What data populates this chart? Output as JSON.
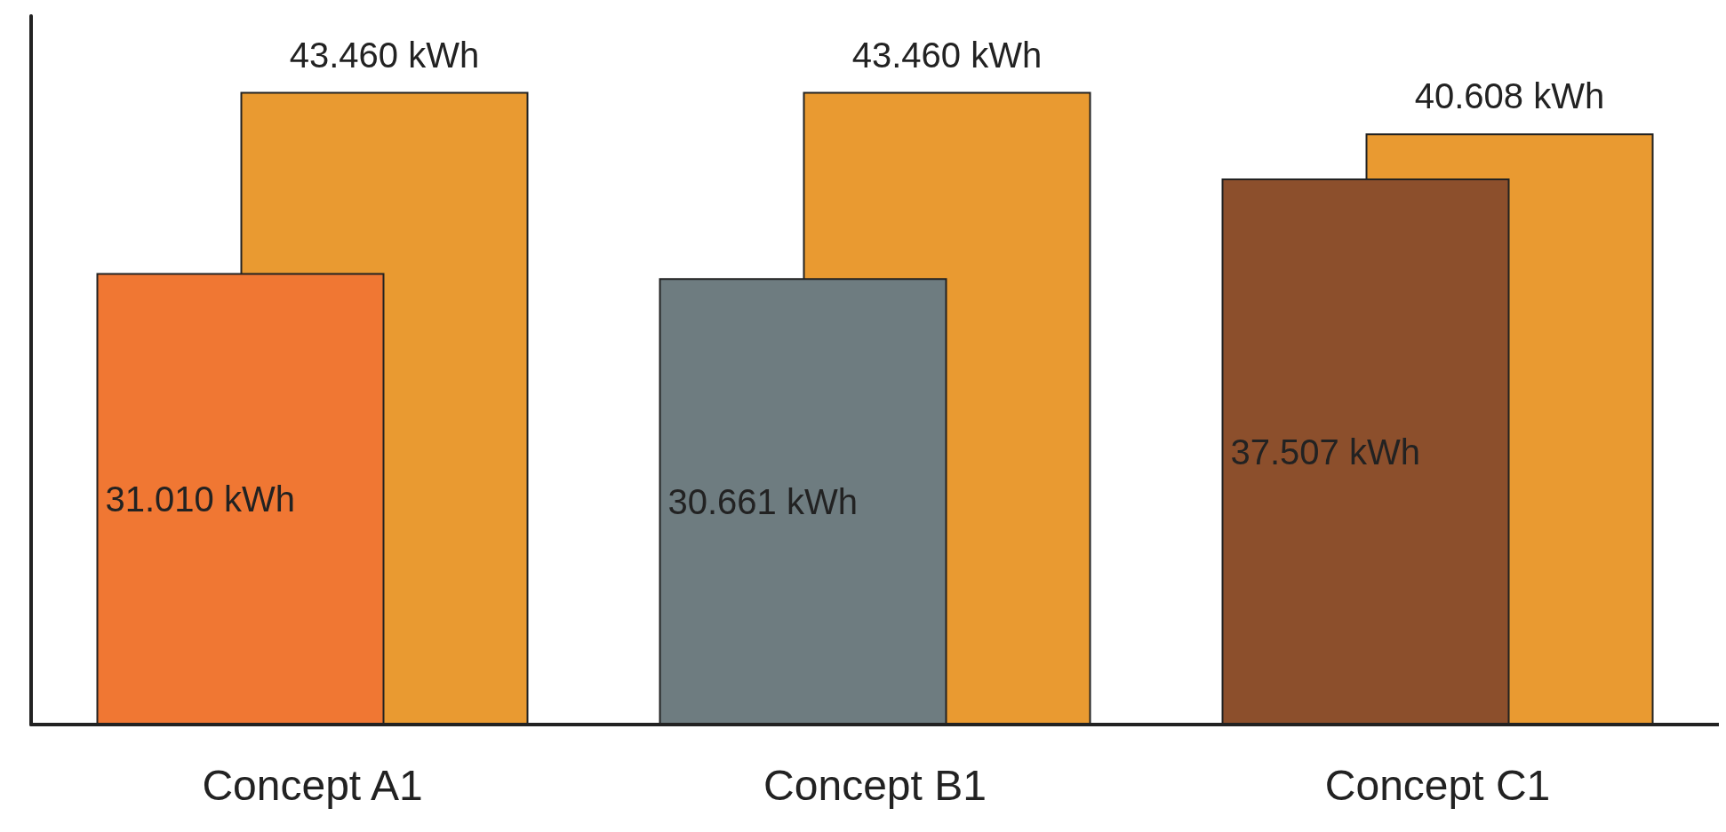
{
  "chart_data": {
    "type": "bar",
    "categories": [
      "Concept A1",
      "Concept B1",
      "Concept C1"
    ],
    "series": [
      {
        "colors": [
          "#f07733",
          "#6e7c80",
          "#8c4f2c"
        ],
        "values": [
          31.01,
          30.661,
          37.507
        ],
        "value_labels": [
          "31.010 kWh",
          "30.661 kWh",
          "37.507 kWh"
        ]
      },
      {
        "color": "#e99a31",
        "values": [
          43.46,
          43.46,
          40.608
        ],
        "value_labels": [
          "43.460 kWh",
          "43.460 kWh",
          "40.608 kWh"
        ]
      }
    ],
    "grid": false
  }
}
